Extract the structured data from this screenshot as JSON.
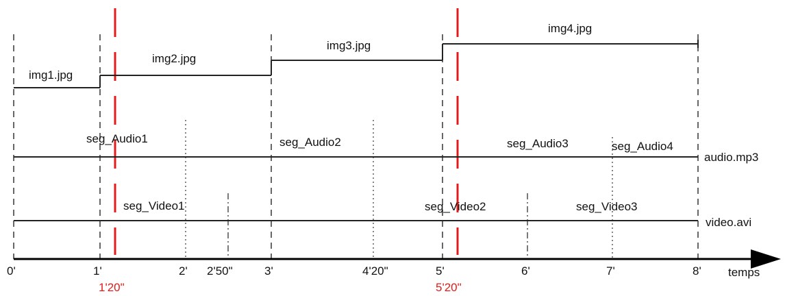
{
  "images": [
    {
      "label": "img1.jpg",
      "start": "0'",
      "end": "1'"
    },
    {
      "label": "img2.jpg",
      "start": "1'",
      "end": "3'"
    },
    {
      "label": "img3.jpg",
      "start": "3'",
      "end": "5'"
    },
    {
      "label": "img4.jpg",
      "start": "5'",
      "end": "8'"
    }
  ],
  "audio": {
    "track_label": "audio.mp3",
    "segments": [
      "seg_Audio1",
      "seg_Audio2",
      "seg_Audio3",
      "seg_Audio4"
    ]
  },
  "video": {
    "track_label": "video.avi",
    "segments": [
      "seg_Video1",
      "seg_Video2",
      "seg_Video3"
    ]
  },
  "axis": {
    "label": "temps",
    "ticks": [
      "0'",
      "1'",
      "2'",
      "2'50\"",
      "3'",
      "4'20\"",
      "5'",
      "6'",
      "7'",
      "8'"
    ]
  },
  "markers": [
    {
      "label": "1'20\"",
      "color": "#e01b1b"
    },
    {
      "label": "5'20\"",
      "color": "#e01b1b"
    }
  ]
}
